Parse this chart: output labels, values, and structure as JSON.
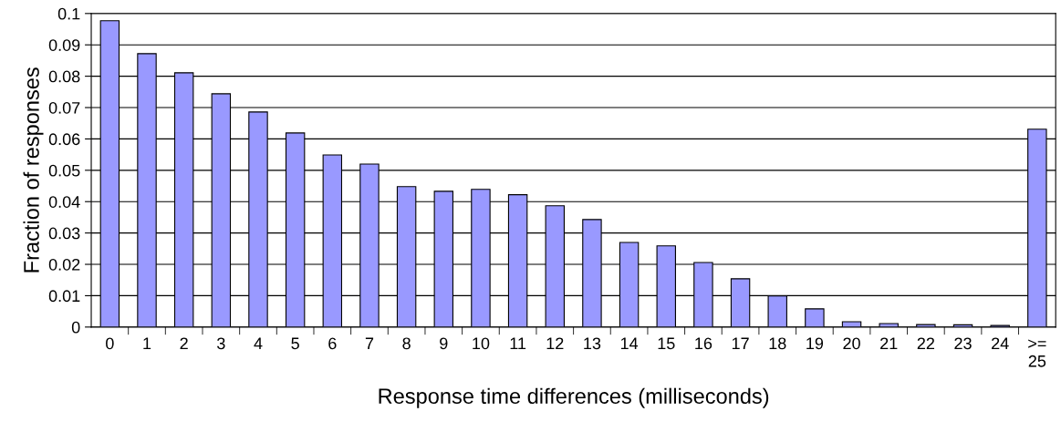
{
  "chart_data": {
    "type": "bar",
    "xlabel": "Response time differences (milliseconds)",
    "ylabel": "Fraction of responses",
    "categories": [
      "0",
      "1",
      "2",
      "3",
      "4",
      "5",
      "6",
      "7",
      "8",
      "9",
      "10",
      "11",
      "12",
      "13",
      "14",
      "15",
      "16",
      "17",
      "18",
      "19",
      "20",
      "21",
      "22",
      "23",
      "24",
      ">=\n25"
    ],
    "values": [
      0.0977,
      0.0872,
      0.0811,
      0.0744,
      0.0686,
      0.0619,
      0.0549,
      0.052,
      0.0448,
      0.0433,
      0.0439,
      0.0422,
      0.0387,
      0.0343,
      0.027,
      0.0259,
      0.0206,
      0.0154,
      0.0099,
      0.0058,
      0.0017,
      0.0011,
      0.0008,
      0.0007,
      0.0005,
      0.0631
    ],
    "color": "#9999ff",
    "ylim": [
      0,
      0.1
    ],
    "yticks": [
      0,
      0.01,
      0.02,
      0.03,
      0.04,
      0.05,
      0.06,
      0.07,
      0.08,
      0.09,
      0.1
    ],
    "grid": "y"
  }
}
